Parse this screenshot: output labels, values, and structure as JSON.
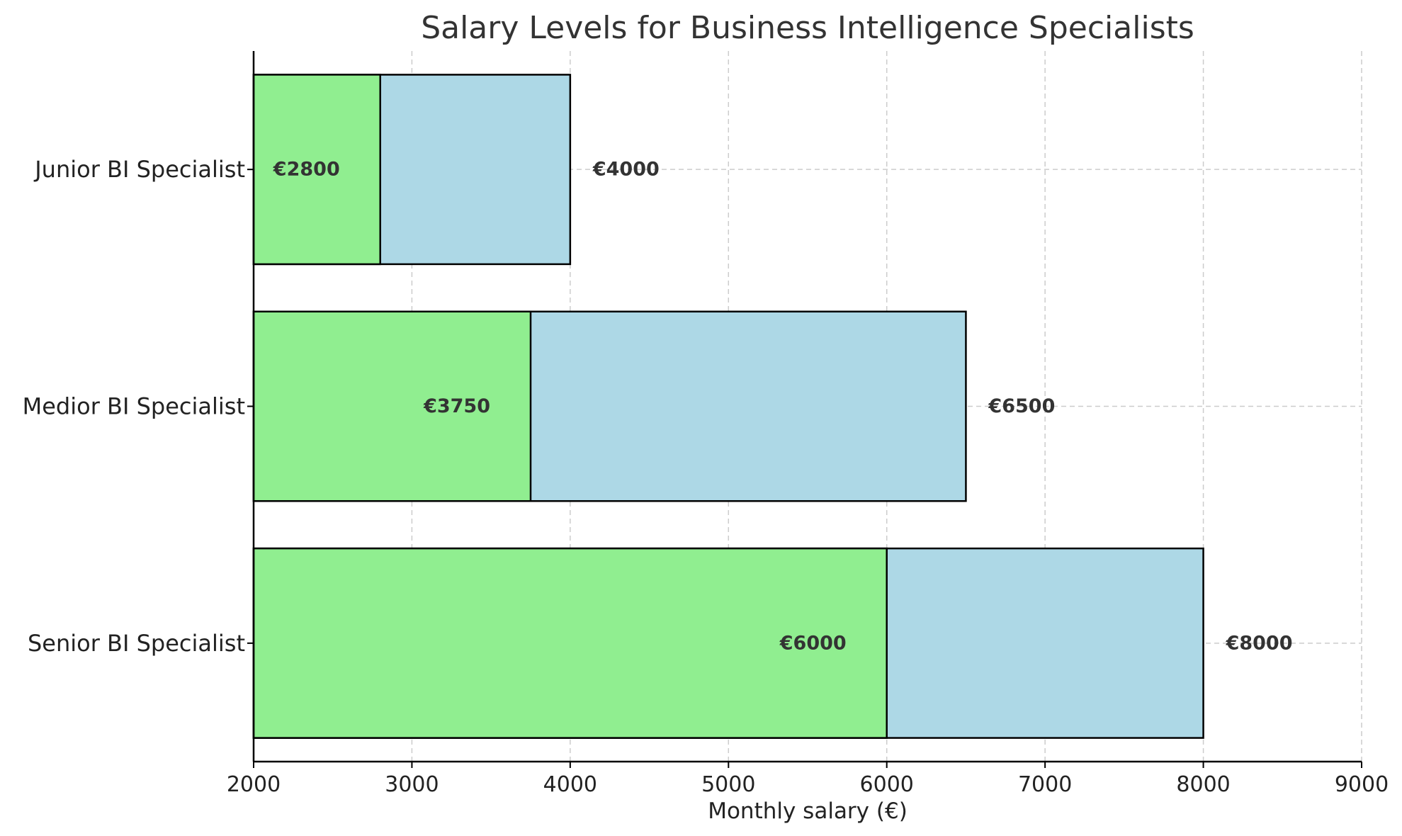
{
  "chart_data": {
    "type": "bar",
    "orientation": "horizontal",
    "stacked": false,
    "title": "Salary Levels for Business Intelligence Specialists",
    "xlabel": "Monthly salary (€)",
    "ylabel": "",
    "xlim": [
      2000,
      9000
    ],
    "xticks": [
      2000,
      3000,
      4000,
      5000,
      6000,
      7000,
      8000,
      9000
    ],
    "categories": [
      "Junior BI Specialist",
      "Medior BI Specialist",
      "Senior BI Specialist"
    ],
    "series": [
      {
        "values": [
          4000,
          6500,
          8000
        ],
        "color": "#add8e6",
        "labels": [
          "€4000",
          "€6500",
          "€8000"
        ]
      },
      {
        "values": [
          2800,
          3750,
          6000
        ],
        "color": "#90ee90",
        "labels": [
          "€2800",
          "€3750",
          "€6000"
        ]
      }
    ],
    "grid": true,
    "legend": "none"
  }
}
